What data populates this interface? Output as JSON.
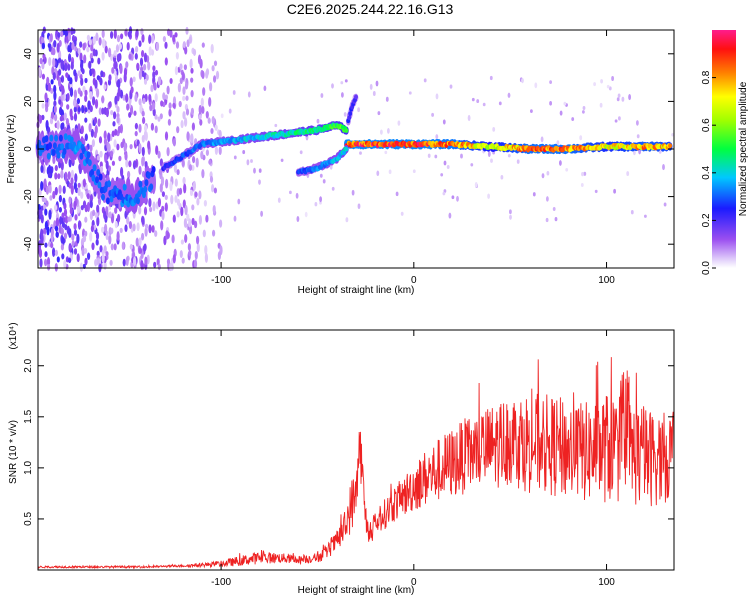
{
  "chart_data": [
    {
      "type": "heatmap",
      "title": "C2E6.2025.244.22.16.G13",
      "xlabel": "Height of straight line (km)",
      "ylabel": "Frequency (Hz)",
      "xlim": [
        -195,
        135
      ],
      "ylim": [
        -50,
        50
      ],
      "xticks": [
        -100,
        0,
        100
      ],
      "yticks": [
        -40,
        -20,
        0,
        20,
        40
      ],
      "colorbar": {
        "label": "Normalized spectral amplitude",
        "range": [
          0,
          1
        ],
        "ticks": [
          "0.0",
          "0.2",
          "0.4",
          "0.6",
          "0.8"
        ],
        "tick_values": [
          0.0,
          0.2,
          0.4,
          0.6,
          0.8
        ]
      },
      "features": [
        {
          "name": "main-track-rising",
          "x": [
            -130,
            -110,
            -90,
            -70,
            -50,
            -40,
            -35
          ],
          "freq_hz": [
            -8,
            2,
            4,
            6,
            8,
            10,
            8
          ],
          "amplitude": [
            0.25,
            0.35,
            0.4,
            0.45,
            0.5,
            0.55,
            0.6
          ]
        },
        {
          "name": "main-track-stable",
          "x": [
            -35,
            -20,
            0,
            20,
            40,
            60,
            80,
            100,
            120,
            133
          ],
          "freq_hz": [
            2,
            2,
            2,
            2,
            1,
            0,
            0,
            1,
            1,
            1
          ],
          "amplitude": [
            0.95,
            0.95,
            0.95,
            0.92,
            0.7,
            0.9,
            0.9,
            0.75,
            0.85,
            0.8
          ]
        },
        {
          "name": "lower-branch",
          "x": [
            -60,
            -50,
            -40,
            -35
          ],
          "freq_hz": [
            -10,
            -8,
            -4,
            0
          ],
          "amplitude": [
            0.3,
            0.35,
            0.4,
            0.45
          ]
        },
        {
          "name": "upper-spike",
          "x": [
            -34,
            -32,
            -30
          ],
          "freq_hz": [
            12,
            18,
            22
          ],
          "amplitude": [
            0.25,
            0.25,
            0.2
          ]
        },
        {
          "name": "left-band",
          "x": [
            -195,
            -175,
            -160,
            -145,
            -135
          ],
          "freq_hz": [
            0,
            2,
            -18,
            -20,
            -12
          ],
          "amplitude": [
            0.3,
            0.35,
            0.3,
            0.35,
            0.3
          ]
        }
      ]
    },
    {
      "type": "line",
      "xlabel": "Height of straight line (km)",
      "ylabel": "SNR (10 * v/v)",
      "y_multiplier": "(x10⁴)",
      "xlim": [
        -195,
        135
      ],
      "ylim": [
        0,
        2.35
      ],
      "xticks": [
        -100,
        0,
        100
      ],
      "yticks": [
        0.5,
        1.0,
        1.5,
        2.0
      ],
      "color": "#ee2222",
      "series": [
        {
          "name": "SNR",
          "x": [
            -195,
            -180,
            -160,
            -140,
            -120,
            -110,
            -100,
            -90,
            -80,
            -70,
            -60,
            -50,
            -45,
            -40,
            -36,
            -33,
            -30,
            -28,
            -25,
            -22,
            -20,
            -15,
            -10,
            -5,
            0,
            10,
            20,
            30,
            40,
            50,
            60,
            70,
            80,
            90,
            100,
            110,
            120,
            130,
            135
          ],
          "y": [
            0.03,
            0.03,
            0.03,
            0.03,
            0.04,
            0.05,
            0.06,
            0.09,
            0.12,
            0.12,
            0.1,
            0.12,
            0.18,
            0.28,
            0.4,
            0.6,
            0.75,
            1.25,
            0.5,
            0.3,
            0.45,
            0.55,
            0.65,
            0.72,
            0.82,
            0.95,
            1.05,
            1.15,
            1.2,
            1.28,
            1.25,
            1.22,
            1.18,
            1.15,
            1.2,
            1.18,
            1.1,
            1.1,
            1.15
          ],
          "spread": [
            0.01,
            0.01,
            0.01,
            0.01,
            0.01,
            0.02,
            0.03,
            0.05,
            0.06,
            0.05,
            0.04,
            0.05,
            0.07,
            0.1,
            0.15,
            0.25,
            0.3,
            0.3,
            0.15,
            0.1,
            0.12,
            0.15,
            0.18,
            0.2,
            0.25,
            0.3,
            0.35,
            0.38,
            0.42,
            0.45,
            0.5,
            0.5,
            0.5,
            0.5,
            0.55,
            0.55,
            0.5,
            0.45,
            0.45
          ]
        }
      ]
    }
  ]
}
